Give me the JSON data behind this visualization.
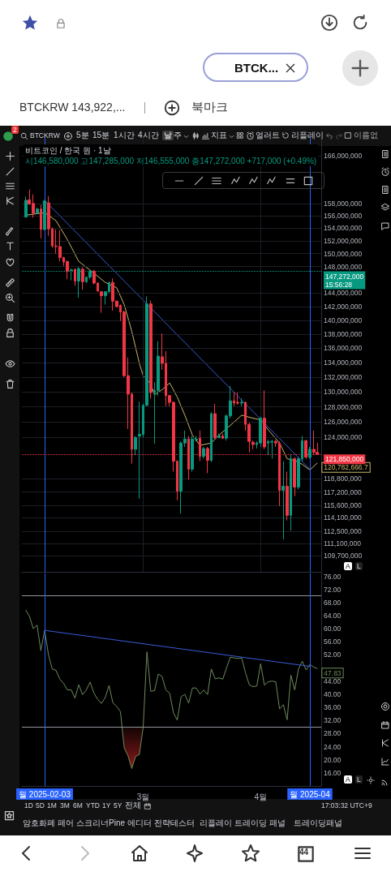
{
  "chart_data": [
    {
      "type": "candlestick",
      "title": "비트코인 / 한국 원 · 1날",
      "subtitle": "시146,580,000 고147,285,000 저146,555,000 종147,272,000 +717,000 (+0.49%)",
      "x": [
        "2025-01-29",
        "2025-01-30",
        "2025-01-31",
        "2025-02-01",
        "2025-02-02",
        "2025-02-03",
        "2025-02-04",
        "2025-02-05",
        "2025-02-06",
        "2025-02-07",
        "2025-02-08",
        "2025-02-09",
        "2025-02-10",
        "2025-02-11",
        "2025-02-12",
        "2025-02-13",
        "2025-02-14",
        "2025-02-15",
        "2025-02-16",
        "2025-02-17",
        "2025-02-18",
        "2025-02-19",
        "2025-02-20",
        "2025-02-21",
        "2025-02-22",
        "2025-02-23",
        "2025-02-24",
        "2025-02-25",
        "2025-02-26",
        "2025-02-27",
        "2025-02-28",
        "2025-03-01",
        "2025-03-02",
        "2025-03-03",
        "2025-03-04",
        "2025-03-05",
        "2025-03-06",
        "2025-03-07",
        "2025-03-08",
        "2025-03-09",
        "2025-03-10",
        "2025-03-11",
        "2025-03-12",
        "2025-03-13",
        "2025-03-14",
        "2025-03-15",
        "2025-03-16",
        "2025-03-17",
        "2025-03-18",
        "2025-03-19",
        "2025-03-20",
        "2025-03-21",
        "2025-03-22",
        "2025-03-23",
        "2025-03-24",
        "2025-03-25",
        "2025-03-26",
        "2025-03-27",
        "2025-03-28",
        "2025-03-29",
        "2025-03-30",
        "2025-03-31",
        "2025-04-01",
        "2025-04-02",
        "2025-04-03",
        "2025-04-04",
        "2025-04-05",
        "2025-04-06",
        "2025-04-07",
        "2025-04-08",
        "2025-04-09",
        "2025-04-10",
        "2025-04-11",
        "2025-04-12",
        "2025-04-13",
        "2025-04-14",
        "2025-04-15",
        "2025-04-16"
      ],
      "ohlc": [
        [
          155800000,
          159100000,
          155700000,
          158500000
        ],
        [
          158600000,
          160300000,
          157800000,
          157900000
        ],
        [
          158000000,
          159500000,
          155700000,
          156400000
        ],
        [
          156400000,
          157300000,
          156300000,
          157100000
        ],
        [
          157100000,
          157800000,
          152400000,
          153800000
        ],
        [
          153800000,
          158600000,
          153700000,
          158400000
        ],
        [
          158100000,
          159200000,
          152800000,
          153900000
        ],
        [
          153900000,
          154100000,
          150900000,
          151200000
        ],
        [
          151200000,
          153800000,
          150000000,
          151100000
        ],
        [
          151100000,
          153700000,
          148800000,
          149400000
        ],
        [
          149400000,
          149500000,
          148100000,
          148700000
        ],
        [
          148800000,
          148900000,
          146100000,
          147300000
        ],
        [
          147400000,
          147700000,
          145900000,
          147500000
        ],
        [
          147600000,
          147700000,
          145100000,
          145800000
        ],
        [
          145800000,
          147900000,
          143300000,
          147700000
        ],
        [
          147600000,
          147900000,
          144500000,
          145700000
        ],
        [
          145700000,
          146500000,
          145500000,
          146400000
        ],
        [
          146400000,
          147500000,
          146100000,
          147300000
        ],
        [
          147300000,
          147500000,
          145300000,
          145500000
        ],
        [
          145500000,
          145600000,
          144200000,
          144300000
        ],
        [
          144200000,
          144300000,
          141100000,
          143600000
        ],
        [
          143600000,
          144300000,
          142300000,
          144200000
        ],
        [
          144200000,
          145700000,
          144100000,
          145600000
        ],
        [
          145600000,
          146200000,
          141400000,
          142800000
        ],
        [
          142800000,
          142900000,
          141900000,
          142000000
        ],
        [
          142200000,
          142300000,
          139900000,
          141200000
        ],
        [
          141200000,
          141400000,
          132000000,
          132200000
        ],
        [
          132200000,
          134700000,
          125100000,
          129700000
        ],
        [
          129700000,
          129900000,
          120700000,
          122500000
        ],
        [
          122500000,
          124200000,
          121800000,
          124000000
        ],
        [
          124200000,
          128700000,
          116400000,
          124400000
        ],
        [
          124400000,
          128400000,
          124000000,
          128200000
        ],
        [
          128200000,
          143500000,
          128100000,
          142400000
        ],
        [
          142400000,
          142900000,
          129100000,
          129900000
        ],
        [
          129900000,
          131300000,
          123200000,
          130200000
        ],
        [
          130200000,
          137000000,
          129500000,
          134900000
        ],
        [
          134800000,
          138100000,
          133000000,
          133900000
        ],
        [
          133900000,
          135600000,
          128100000,
          129500000
        ],
        [
          129500000,
          129600000,
          128100000,
          128600000
        ],
        [
          128600000,
          128700000,
          119700000,
          121000000
        ],
        [
          121000000,
          121100000,
          116200000,
          117300000
        ],
        [
          117300000,
          123500000,
          114600000,
          123300000
        ],
        [
          123300000,
          124900000,
          122800000,
          123800000
        ],
        [
          123800000,
          124200000,
          118700000,
          120000000
        ],
        [
          120000000,
          124200000,
          119700000,
          123800000
        ],
        [
          123700000,
          124200000,
          123500000,
          123800000
        ],
        [
          123900000,
          124900000,
          121000000,
          121600000
        ],
        [
          121600000,
          122800000,
          121300000,
          122600000
        ],
        [
          122600000,
          122800000,
          119500000,
          121100000
        ],
        [
          121100000,
          127300000,
          120900000,
          127100000
        ],
        [
          127100000,
          128400000,
          123800000,
          124000000
        ],
        [
          124000000,
          124500000,
          123900000,
          124200000
        ],
        [
          124200000,
          124500000,
          123800000,
          123900000
        ],
        [
          123900000,
          127000000,
          123600000,
          126800000
        ],
        [
          126800000,
          130800000,
          126500000,
          128800000
        ],
        [
          128800000,
          130000000,
          128100000,
          128500000
        ],
        [
          128600000,
          129900000,
          128300000,
          128500000
        ],
        [
          128500000,
          129100000,
          128100000,
          128600000
        ],
        [
          128600000,
          128700000,
          124900000,
          125700000
        ],
        [
          125700000,
          125900000,
          122100000,
          123500000
        ],
        [
          123400000,
          123600000,
          122500000,
          123100000
        ],
        [
          123100000,
          123500000,
          122600000,
          123300000
        ],
        [
          123300000,
          126700000,
          122800000,
          126500000
        ],
        [
          126500000,
          130200000,
          122500000,
          122800000
        ],
        [
          123300000,
          123700000,
          121800000,
          123500000
        ],
        [
          123400000,
          123700000,
          121300000,
          123500000
        ],
        [
          123500000,
          123700000,
          122800000,
          123300000
        ],
        [
          123300000,
          123500000,
          115500000,
          117400000
        ],
        [
          117400000,
          121000000,
          111600000,
          117900000
        ],
        [
          117900000,
          119700000,
          113800000,
          114400000
        ],
        [
          114400000,
          121800000,
          112600000,
          121300000
        ],
        [
          121300000,
          121500000,
          116700000,
          117800000
        ],
        [
          117800000,
          121500000,
          117500000,
          121300000
        ],
        [
          121300000,
          124200000,
          121000000,
          123600000
        ],
        [
          123600000,
          123700000,
          121300000,
          121500000
        ],
        [
          121500000,
          122800000,
          121300000,
          122500000
        ],
        [
          122500000,
          124900000,
          121800000,
          122100000
        ],
        [
          122100000,
          123300000,
          121800000,
          121850000
        ]
      ],
      "series": [
        {
          "type": "line",
          "color": "#c9b76a",
          "x": [
            "2025-01-29",
            "2025-02-03",
            "2025-02-06",
            "2025-02-09",
            "2025-02-12",
            "2025-02-16",
            "2025-02-19",
            "2025-02-22",
            "2025-02-24",
            "2025-02-26",
            "2025-02-28",
            "2025-03-01",
            "2025-03-03",
            "2025-03-04",
            "2025-03-06",
            "2025-03-08",
            "2025-03-10",
            "2025-03-12",
            "2025-03-14",
            "2025-03-16",
            "2025-03-19",
            "2025-03-21",
            "2025-03-25",
            "2025-03-27",
            "2025-03-30",
            "2025-04-01",
            "2025-04-03",
            "2025-04-06",
            "2025-04-08",
            "2025-04-10",
            "2025-04-12",
            "2025-04-14",
            "2025-04-16"
          ],
          "values": [
            156100000,
            156500000,
            155200000,
            152200000,
            148800000,
            147000000,
            145600000,
            144800000,
            142300000,
            138400000,
            133900000,
            132200000,
            131100000,
            129600000,
            130300000,
            131200000,
            129300000,
            126900000,
            124300000,
            123000000,
            123300000,
            124300000,
            126000000,
            126900000,
            126500000,
            126300000,
            125000000,
            123300000,
            121300000,
            121100000,
            120600000,
            119900000,
            120782666.7
          ],
          "value_labels": [
            null,
            null,
            null,
            null,
            null,
            null,
            null,
            null,
            null,
            null,
            null,
            null,
            null,
            null,
            null,
            null,
            null,
            null,
            null,
            null,
            null,
            null,
            null,
            null,
            null,
            null,
            null,
            null,
            null,
            null,
            null,
            null,
            "120,782,666.7"
          ]
        },
        {
          "type": "line",
          "color": "#3a5bd9",
          "x": [
            "2025-02-03",
            "2025-04-14"
          ],
          "values": [
            158500000,
            120000000
          ]
        }
      ],
      "xlim": [
        "2025-01-28",
        "2025-04-17"
      ],
      "xticks": [
        {
          "value": "2025-03-01",
          "label": null
        },
        {
          "value": "2025-04-01",
          "label": null
        }
      ],
      "ylim": [
        107900000,
        169100000
      ],
      "yticks": [
        {
          "value": 166000000,
          "label": "166,000,000"
        },
        {
          "value": 158000000,
          "label": "158,000,000"
        },
        {
          "value": 156000000,
          "label": "156,000,000"
        },
        {
          "value": 154000000,
          "label": "154,000,000"
        },
        {
          "value": 152000000,
          "label": "152,000,000"
        },
        {
          "value": 150000000,
          "label": "150,000,000"
        },
        {
          "value": 148000000,
          "label": "148,000,000"
        },
        {
          "value": 144000000,
          "label": "144,000,000"
        },
        {
          "value": 142000000,
          "label": "142,000,000"
        },
        {
          "value": 140000000,
          "label": "140,000,000"
        },
        {
          "value": 138000000,
          "label": "138,000,000"
        },
        {
          "value": 136000000,
          "label": "136,000,000"
        },
        {
          "value": 134000000,
          "label": "134,000,000"
        },
        {
          "value": 132000000,
          "label": "132,000,000"
        },
        {
          "value": 130000000,
          "label": "130,000,000"
        },
        {
          "value": 128000000,
          "label": "128,000,000"
        },
        {
          "value": 126000000,
          "label": "126,000,000"
        },
        {
          "value": 124000000,
          "label": "124,000,000"
        },
        {
          "value": 118800000,
          "label": "118,800,000"
        },
        {
          "value": 117200000,
          "label": "117,200,000"
        },
        {
          "value": 115600000,
          "label": "115,600,000"
        },
        {
          "value": 114100000,
          "label": "114,100,000"
        },
        {
          "value": 112500000,
          "label": "112,500,000"
        },
        {
          "value": 111100000,
          "label": "111,100,000"
        },
        {
          "value": 109700000,
          "label": "109,700,000"
        }
      ],
      "log": true,
      "grid": true,
      "tick_labels": "y",
      "ref_lines": [
        {
          "axis": "x",
          "value": "2025-02-03",
          "label": null,
          "color": "#2962ff"
        },
        {
          "axis": "x",
          "value": "2025-04-14",
          "label": null,
          "color": "#2962ff"
        },
        {
          "axis": "y",
          "value": 147272000,
          "label": "147,272,000\n15:56:28",
          "color": "#089981",
          "line_style": "dotted"
        },
        {
          "axis": "y",
          "value": 121850000,
          "label": "121,850,000",
          "color": "#f23645",
          "line_style": "dotted"
        }
      ]
    },
    {
      "type": "line",
      "x": [
        "2025-01-29",
        "2025-01-30",
        "2025-01-31",
        "2025-02-01",
        "2025-02-02",
        "2025-02-03",
        "2025-02-04",
        "2025-02-05",
        "2025-02-06",
        "2025-02-07",
        "2025-02-08",
        "2025-02-09",
        "2025-02-10",
        "2025-02-11",
        "2025-02-12",
        "2025-02-13",
        "2025-02-14",
        "2025-02-15",
        "2025-02-16",
        "2025-02-17",
        "2025-02-18",
        "2025-02-19",
        "2025-02-20",
        "2025-02-21",
        "2025-02-22",
        "2025-02-23",
        "2025-02-24",
        "2025-02-25",
        "2025-02-26",
        "2025-02-27",
        "2025-02-28",
        "2025-03-01",
        "2025-03-02",
        "2025-03-03",
        "2025-03-04",
        "2025-03-05",
        "2025-03-06",
        "2025-03-07",
        "2025-03-08",
        "2025-03-09",
        "2025-03-10",
        "2025-03-11",
        "2025-03-12",
        "2025-03-13",
        "2025-03-14",
        "2025-03-15",
        "2025-03-16",
        "2025-03-17",
        "2025-03-18",
        "2025-03-19",
        "2025-03-20",
        "2025-03-21",
        "2025-03-22",
        "2025-03-23",
        "2025-03-24",
        "2025-03-25",
        "2025-03-26",
        "2025-03-27",
        "2025-03-28",
        "2025-03-29",
        "2025-03-30",
        "2025-03-31",
        "2025-04-01",
        "2025-04-02",
        "2025-04-03",
        "2025-04-04",
        "2025-04-05",
        "2025-04-06",
        "2025-04-07",
        "2025-04-08",
        "2025-04-09",
        "2025-04-10",
        "2025-04-11",
        "2025-04-12",
        "2025-04-13",
        "2025-04-14",
        "2025-04-15",
        "2025-04-16"
      ],
      "series": [
        {
          "color": "#6d8b5a",
          "values": [
            65.7,
            63.8,
            60.0,
            61.1,
            53.3,
            59.5,
            52.1,
            47.7,
            47.3,
            44.6,
            43.3,
            41.3,
            41.4,
            38.8,
            42.9,
            39.9,
            41.3,
            43.7,
            40.4,
            38.4,
            37.2,
            39.0,
            42.7,
            37.4,
            36.3,
            34.7,
            23.6,
            21.2,
            17.3,
            21.0,
            21.6,
            29.8,
            52.9,
            40.9,
            41.1,
            46.2,
            45.4,
            41.3,
            40.3,
            34.3,
            32.1,
            39.2,
            40.0,
            37.3,
            41.9,
            41.9,
            40.0,
            41.3,
            39.9,
            47.7,
            44.7,
            45.0,
            44.6,
            48.0,
            51.3,
            51.1,
            50.9,
            51.1,
            46.6,
            42.9,
            42.3,
            42.5,
            49.3,
            42.8,
            43.8,
            44.0,
            43.8,
            35.5,
            36.8,
            32.2,
            45.8,
            41.3,
            47.7,
            50.1,
            47.4,
            49.1,
            48.3,
            47.83
          ],
          "value_labels": [
            null,
            null,
            null,
            null,
            null,
            null,
            null,
            null,
            null,
            null,
            null,
            null,
            null,
            null,
            null,
            null,
            null,
            null,
            null,
            null,
            null,
            null,
            null,
            null,
            null,
            null,
            null,
            null,
            null,
            null,
            null,
            null,
            null,
            null,
            null,
            null,
            null,
            null,
            null,
            null,
            null,
            null,
            null,
            null,
            null,
            null,
            null,
            null,
            null,
            null,
            null,
            null,
            null,
            null,
            null,
            null,
            null,
            null,
            null,
            null,
            null,
            null,
            null,
            null,
            null,
            null,
            null,
            null,
            null,
            null,
            null,
            null,
            null,
            null,
            null,
            null,
            null,
            "47.83"
          ]
        },
        {
          "type": "line",
          "color": "#3a5bd9",
          "x": [
            "2025-02-03",
            "2025-04-14"
          ],
          "values": [
            59.5,
            48.5
          ]
        },
        {
          "type": "area",
          "color": "#8b1a1a",
          "x": [
            "2025-02-23T10:00",
            "2025-02-24",
            "2025-02-25",
            "2025-02-26",
            "2025-02-27",
            "2025-02-28",
            "2025-03-01",
            "2025-03-01T00:12"
          ],
          "values": [
            30,
            23.6,
            21.2,
            17.3,
            21.0,
            21.6,
            29.8,
            30
          ]
        }
      ],
      "xlim": [
        "2025-01-28",
        "2025-04-17"
      ],
      "xticks": [
        {
          "value": "2025-03-01",
          "label": "3월"
        },
        {
          "value": "2025-04-01",
          "label": "4월"
        }
      ],
      "ylim": [
        12,
        77
      ],
      "yticks": [
        {
          "value": 16,
          "label": "16.00"
        },
        {
          "value": 20,
          "label": "20.00"
        },
        {
          "value": 24,
          "label": "24.00"
        },
        {
          "value": 28,
          "label": "28.00"
        },
        {
          "value": 32,
          "label": "32.00"
        },
        {
          "value": 36,
          "label": "36.00"
        },
        {
          "value": 40,
          "label": "40.00"
        },
        {
          "value": 44,
          "label": "44.00"
        },
        {
          "value": 52,
          "label": "52.00"
        },
        {
          "value": 56,
          "label": "56.00"
        },
        {
          "value": 60,
          "label": "60.00"
        },
        {
          "value": 64,
          "label": "64.00"
        },
        {
          "value": 68,
          "label": "68.00"
        },
        {
          "value": 72,
          "label": "72.00"
        },
        {
          "value": 76,
          "label": "76.00"
        }
      ],
      "ref_lines": [
        {
          "axis": "y",
          "value": 70,
          "label": null,
          "color": "#9598a1"
        },
        {
          "axis": "y",
          "value": 30,
          "label": null,
          "color": "#9598a1"
        },
        {
          "axis": "x",
          "value": "2025-02-03",
          "label": "월 2025-02-03",
          "color": "#2962ff"
        },
        {
          "axis": "x",
          "value": "2025-04-14",
          "label": "월 2025-04",
          "color": "#2962ff"
        }
      ]
    },
    {
      "type": "other",
      "annotations": [
        "BTCK...",
        "BTCKRW 143,922,...",
        "북마크",
        "BTCKRW",
        "5분",
        "15분",
        "1시간",
        "4시간",
        "날",
        "주",
        "지표",
        "얼러트",
        "리플레이",
        "1D",
        "5D",
        "1M",
        "3M",
        "6M",
        "YTD",
        "1Y",
        "5Y",
        "전체",
        "17:03:32 UTC+9",
        "암호화폐 페어 스크리너",
        "Pine 에디터",
        "전략테스터",
        "리플레이 트레이딩 패널",
        "트레이딩패널",
        "44",
        "A",
        "L",
        "A",
        "L",
        "이름없",
        "2"
      ]
    }
  ]
}
